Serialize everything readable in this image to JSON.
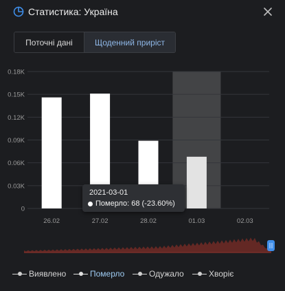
{
  "window": {
    "title": "Статистика: Україна"
  },
  "tabs": [
    {
      "label": "Поточні дані",
      "active": false
    },
    {
      "label": "Щоденний приріст",
      "active": true
    }
  ],
  "chart_data": {
    "type": "bar",
    "categories": [
      "26.02",
      "27.02",
      "28.02",
      "01.03",
      "02.03"
    ],
    "y_ticks": [
      "0",
      "0.03K",
      "0.06K",
      "0.09K",
      "0.12K",
      "0.15K",
      "0.18K"
    ],
    "ylim": [
      0,
      180
    ],
    "grid": true,
    "series": [
      {
        "name": "Померло",
        "values": [
          146,
          151,
          89,
          68,
          null
        ]
      }
    ],
    "highlight_category": "01.03",
    "colors": {
      "bar": "#ffffff",
      "bar_highlight": "#e3e3e3",
      "grid": "#34363b",
      "highlight_band": "#4a4b4e"
    }
  },
  "tooltip": {
    "date": "2021-03-01",
    "value": "Померло: 68 (-23.60%)"
  },
  "legend": [
    {
      "label": "Виявлено",
      "active": false
    },
    {
      "label": "Померло",
      "active": true
    },
    {
      "label": "Одужало",
      "active": false
    },
    {
      "label": "Хворіє",
      "active": false
    }
  ],
  "colors": {
    "background": "#1c1d20",
    "accent": "#3f8ee8",
    "scroller_fill": "#6b2a25"
  }
}
